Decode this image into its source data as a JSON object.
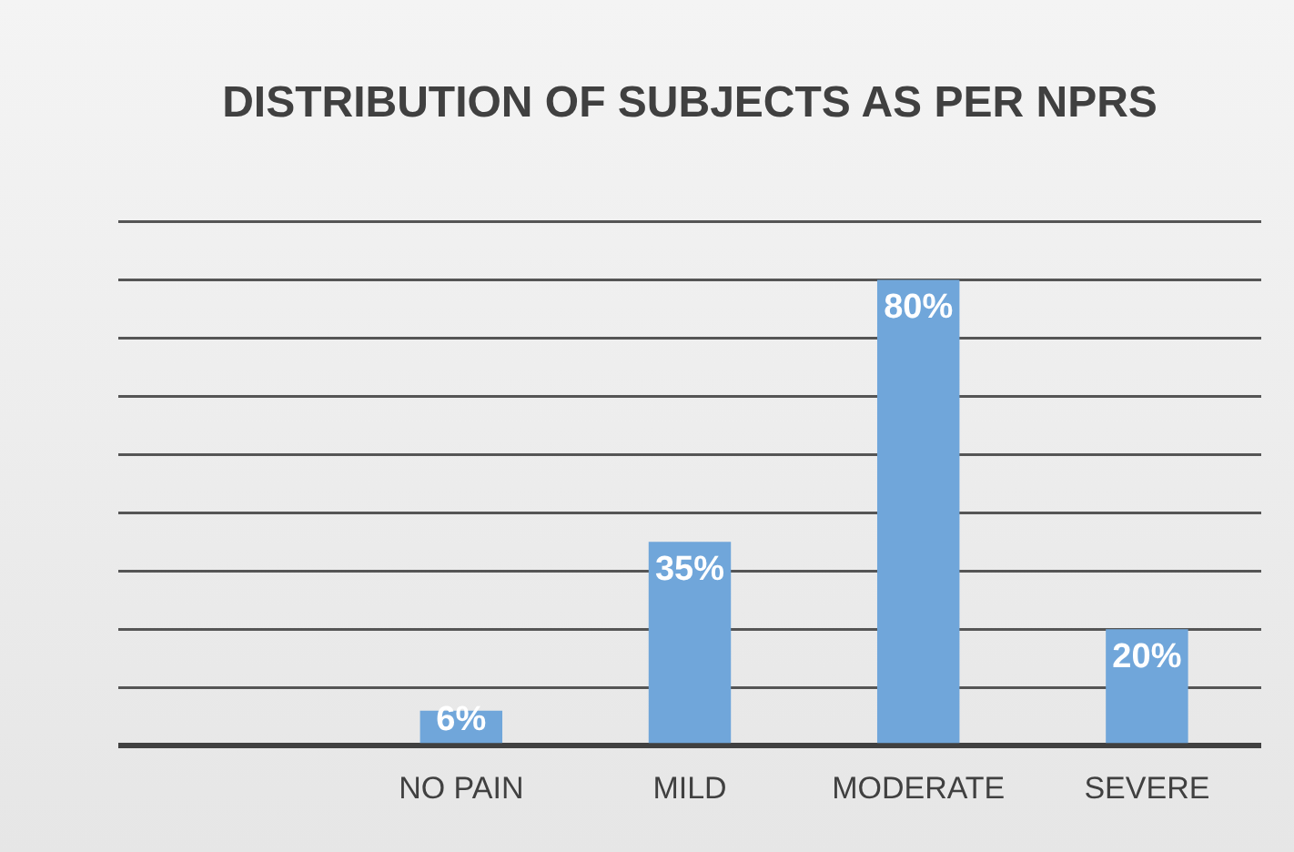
{
  "chart_data": {
    "type": "bar",
    "title": "DISTRIBUTION OF SUBJECTS AS PER NPRS",
    "categories": [
      null,
      "NO PAIN",
      "MILD",
      "MODERATE",
      "SEVERE"
    ],
    "values": [
      null,
      6,
      35,
      80,
      20
    ],
    "value_labels": [
      null,
      "6%",
      "35%",
      "80%",
      "20%"
    ],
    "color": "#70a6da",
    "tick_labels": "x",
    "grid": "y",
    "legend": false
  }
}
